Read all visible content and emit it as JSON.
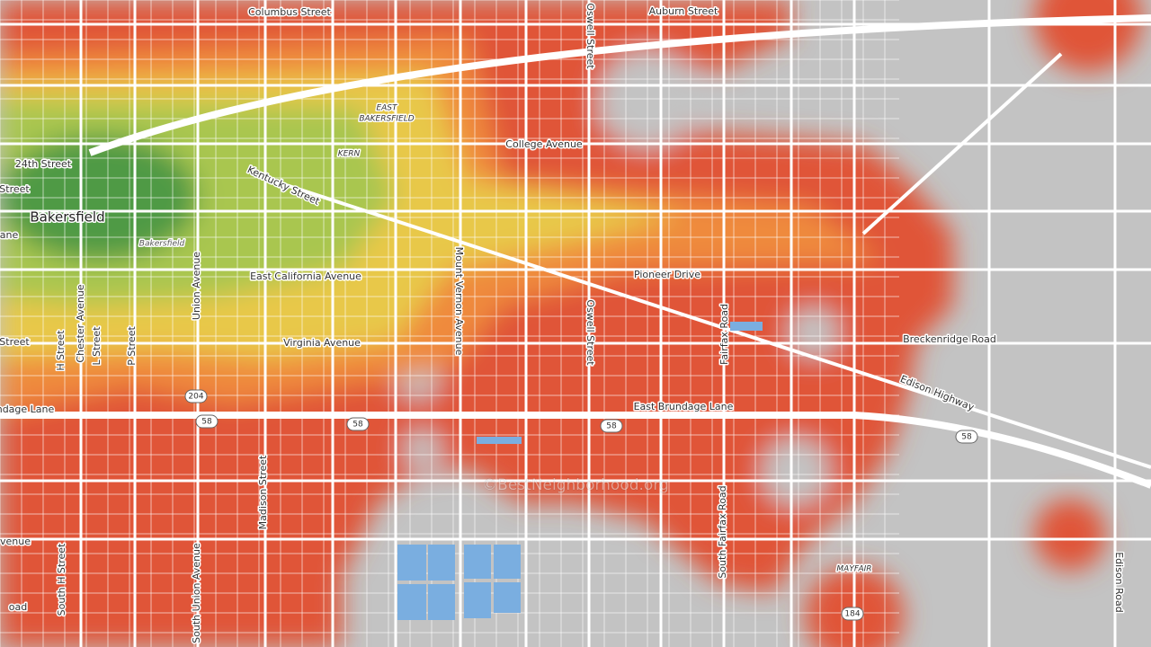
{
  "labels": [
    "Columbus Street",
    "Auburn Street",
    "Oswell Street",
    "EAST",
    "BAKERSFIELD",
    "KERN",
    "College Avenue",
    "24th Street",
    "Street",
    "Bakersfield",
    "Bakersfield",
    "Kentucky Street",
    "Mount Vernon Avenue",
    "Pioneer Drive",
    "East California Avenue",
    "Union Avenue",
    "H Street",
    "Chester Avenue",
    "L Street",
    "P Street",
    "Virginia Avenue",
    "Oswell Street",
    "Fairfax Road",
    "Breckenridge Road",
    "Edison Highway",
    "East Brundage Lane",
    "ndage Lane",
    "Madison Street",
    "South H Street",
    "South Union Avenue",
    "South Fairfax Road",
    "MAYFAIR",
    "Edison Road",
    "venue",
    "oad",
    "Street",
    "ane"
  ],
  "shields": [
    "204",
    "58",
    "58",
    "58",
    "58",
    "184"
  ],
  "watermark": "©BestNeighborhood.org"
}
